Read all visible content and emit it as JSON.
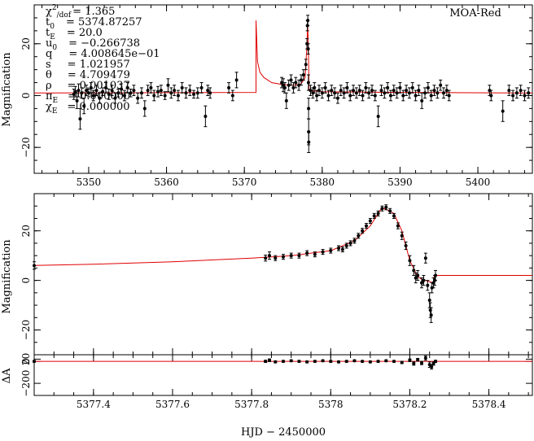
{
  "chart_data": [
    {
      "type": "scatter",
      "title": "",
      "label_text": "MOA-Red",
      "xlim": [
        5343,
        5407
      ],
      "ylim": [
        -30,
        35
      ],
      "ylabel": "Magnification",
      "xticks": [
        5350,
        5360,
        5370,
        5380,
        5390,
        5400
      ],
      "yticks": [
        -20,
        0,
        20
      ],
      "fit_color": "#e00000",
      "params": {
        "chi2_label": "χ",
        "chi2_sup": "2",
        "chi2_sub": "/dof",
        "chi2_value": "= 1.365",
        "t0_label": "t",
        "t0_sub": "0",
        "t0_value": "= 5374.87257",
        "tE_label": "t",
        "tE_sub": "E",
        "tE_value": "= 20.0",
        "u0_label": "u",
        "u0_sub": "0",
        "u0_value": "= −0.266738",
        "q_label": "q",
        "q_value": "= 4.008645e−01",
        "s_label": "s",
        "s_value": "= 1.021957",
        "theta_label": "θ",
        "theta_value": "= 4.709479",
        "rho_label": "ρ",
        "rho_value": "= 0.001037",
        "piE_label": "π",
        "piE_sub": "E",
        "piE_value": "= 0.000000",
        "chiE_label": "χ",
        "chiE_sub": "E",
        "chiE_value": "= 0.000000"
      },
      "fit_curve": [
        [
          5343,
          1
        ],
        [
          5371.5,
          1.2
        ],
        [
          5371.5,
          29
        ],
        [
          5371.7,
          13
        ],
        [
          5372,
          9
        ],
        [
          5372.5,
          7
        ],
        [
          5373.5,
          5
        ],
        [
          5375,
          4.2
        ],
        [
          5376.5,
          4
        ],
        [
          5377.3,
          4.5
        ],
        [
          5377.8,
          7
        ],
        [
          5378.05,
          20
        ],
        [
          5378.12,
          28
        ],
        [
          5378.22,
          20
        ],
        [
          5378.3,
          2
        ],
        [
          5380,
          1.5
        ],
        [
          5390,
          1.2
        ],
        [
          5407,
          1
        ]
      ],
      "points": [
        [
          5348.1,
          0.5,
          2
        ],
        [
          5348.3,
          1.5,
          2
        ],
        [
          5348.5,
          -2,
          3
        ],
        [
          5348.7,
          2,
          2.5
        ],
        [
          5348.9,
          -9,
          4
        ],
        [
          5349.1,
          1,
          2
        ],
        [
          5349.4,
          -4,
          3
        ],
        [
          5349.7,
          2,
          2
        ],
        [
          5350.0,
          1,
          1.5
        ],
        [
          5350.3,
          3,
          2
        ],
        [
          5350.6,
          0,
          2
        ],
        [
          5351.0,
          2,
          2
        ],
        [
          5351.4,
          -1,
          2
        ],
        [
          5351.8,
          1.5,
          1.5
        ],
        [
          5352.2,
          3,
          2
        ],
        [
          5352.6,
          0.5,
          2
        ],
        [
          5353.0,
          2,
          2
        ],
        [
          5353.4,
          -1,
          2
        ],
        [
          5353.8,
          1,
          1.5
        ],
        [
          5354.2,
          2.5,
          2
        ],
        [
          5354.6,
          0,
          2
        ],
        [
          5355.0,
          3,
          2
        ],
        [
          5355.4,
          1,
          1.5
        ],
        [
          5355.8,
          2,
          2
        ],
        [
          5356.3,
          -1,
          2
        ],
        [
          5356.8,
          1,
          2
        ],
        [
          5357.2,
          -5,
          3
        ],
        [
          5357.6,
          2,
          2
        ],
        [
          5358.0,
          3,
          2
        ],
        [
          5358.4,
          0,
          2
        ],
        [
          5358.9,
          1.5,
          2
        ],
        [
          5359.3,
          2,
          2
        ],
        [
          5359.8,
          0,
          1.5
        ],
        [
          5360.2,
          4,
          2.5
        ],
        [
          5360.6,
          1,
          2
        ],
        [
          5361.0,
          2,
          2
        ],
        [
          5361.5,
          0,
          2
        ],
        [
          5362.0,
          3,
          2
        ],
        [
          5362.5,
          1,
          2
        ],
        [
          5363.0,
          2,
          2
        ],
        [
          5363.5,
          0.5,
          1.5
        ],
        [
          5364.0,
          1,
          2
        ],
        [
          5364.5,
          3,
          2
        ],
        [
          5365.0,
          -8,
          4
        ],
        [
          5365.3,
          2,
          2
        ],
        [
          5365.6,
          1,
          2
        ],
        [
          5368.0,
          3,
          2
        ],
        [
          5368.5,
          0,
          2
        ],
        [
          5369.0,
          6,
          3
        ],
        [
          5374.8,
          5,
          2
        ],
        [
          5375.0,
          4,
          2.5
        ],
        [
          5375.2,
          3,
          2
        ],
        [
          5375.4,
          -2,
          3
        ],
        [
          5375.7,
          4,
          2
        ],
        [
          5376.0,
          6,
          2
        ],
        [
          5376.3,
          3,
          2
        ],
        [
          5376.6,
          5,
          2
        ],
        [
          5377.0,
          4,
          2
        ],
        [
          5377.3,
          6,
          2
        ],
        [
          5377.6,
          8,
          2
        ],
        [
          5377.9,
          12,
          2
        ],
        [
          5378.05,
          20,
          2
        ],
        [
          5378.1,
          27,
          2
        ],
        [
          5378.15,
          29,
          2
        ],
        [
          5378.2,
          18,
          2
        ],
        [
          5378.23,
          5,
          3
        ],
        [
          5378.25,
          -5,
          4
        ],
        [
          5378.26,
          -14,
          5
        ],
        [
          5378.27,
          -18,
          4
        ],
        [
          5378.5,
          2,
          2
        ],
        [
          5378.8,
          1,
          2
        ],
        [
          5379.0,
          3,
          2
        ],
        [
          5379.3,
          0,
          2
        ],
        [
          5379.6,
          2,
          2
        ],
        [
          5380.0,
          1,
          2
        ],
        [
          5380.4,
          3,
          2
        ],
        [
          5380.8,
          0,
          2
        ],
        [
          5381.2,
          2,
          2
        ],
        [
          5381.6,
          1,
          2
        ],
        [
          5382.0,
          -1,
          2
        ],
        [
          5382.4,
          2,
          2
        ],
        [
          5382.8,
          1,
          2
        ],
        [
          5383.2,
          3,
          2
        ],
        [
          5383.6,
          0,
          2
        ],
        [
          5384.0,
          2,
          2
        ],
        [
          5384.4,
          1,
          2
        ],
        [
          5384.8,
          2,
          2
        ],
        [
          5385.2,
          0,
          2
        ],
        [
          5385.6,
          3,
          2
        ],
        [
          5386.0,
          1,
          2
        ],
        [
          5386.4,
          2,
          2
        ],
        [
          5386.8,
          0,
          2
        ],
        [
          5387.2,
          -8,
          4
        ],
        [
          5387.6,
          2,
          2
        ],
        [
          5388.0,
          1,
          2
        ],
        [
          5388.4,
          3,
          2
        ],
        [
          5388.8,
          0,
          2
        ],
        [
          5389.2,
          2,
          2
        ],
        [
          5389.6,
          1,
          2
        ],
        [
          5390.0,
          3,
          2
        ],
        [
          5390.4,
          0,
          2
        ],
        [
          5390.8,
          2,
          2
        ],
        [
          5391.2,
          1,
          2
        ],
        [
          5391.6,
          3,
          2
        ],
        [
          5392.0,
          0,
          2
        ],
        [
          5392.4,
          2,
          2
        ],
        [
          5392.8,
          -2,
          3
        ],
        [
          5393.2,
          1,
          2
        ],
        [
          5393.6,
          3,
          2
        ],
        [
          5394.0,
          0,
          2
        ],
        [
          5394.4,
          2,
          2
        ],
        [
          5394.8,
          1,
          2
        ],
        [
          5395.2,
          4,
          2
        ],
        [
          5395.6,
          1,
          2
        ],
        [
          5396.0,
          2,
          2
        ],
        [
          5396.3,
          0,
          2
        ],
        [
          5401.5,
          2,
          2
        ],
        [
          5401.7,
          0,
          2
        ],
        [
          5403.2,
          -6,
          4
        ],
        [
          5404.0,
          2,
          2
        ],
        [
          5404.5,
          0,
          2
        ],
        [
          5405.0,
          1,
          2
        ],
        [
          5405.5,
          2,
          2
        ],
        [
          5406.0,
          0,
          2
        ],
        [
          5406.5,
          1,
          2
        ]
      ]
    },
    {
      "type": "scatter",
      "title": "",
      "xlim": [
        5377.25,
        5378.51
      ],
      "ylim": [
        -30,
        35
      ],
      "ylabel": "Magnification",
      "yticks": [
        -20,
        0,
        20
      ],
      "fit_color": "#e00000",
      "fit_curve": [
        [
          5377.25,
          6
        ],
        [
          5377.4,
          6.5
        ],
        [
          5377.6,
          7.5
        ],
        [
          5377.8,
          9
        ],
        [
          5377.9,
          10
        ],
        [
          5378.0,
          12
        ],
        [
          5378.06,
          16
        ],
        [
          5378.1,
          22
        ],
        [
          5378.13,
          29.5
        ],
        [
          5378.16,
          27
        ],
        [
          5378.18,
          20
        ],
        [
          5378.2,
          8
        ],
        [
          5378.22,
          1.5
        ],
        [
          5378.23,
          0.5
        ],
        [
          5378.26,
          -1
        ],
        [
          5378.262,
          2
        ],
        [
          5378.51,
          2
        ]
      ],
      "points": [
        [
          5377.25,
          6,
          1.5
        ],
        [
          5377.835,
          9,
          1.2
        ],
        [
          5377.845,
          10,
          1.5
        ],
        [
          5377.86,
          9,
          1
        ],
        [
          5377.88,
          9.5,
          1
        ],
        [
          5377.9,
          10,
          1
        ],
        [
          5377.92,
          10,
          1
        ],
        [
          5377.94,
          11,
          1
        ],
        [
          5377.96,
          10.5,
          1
        ],
        [
          5377.98,
          11.5,
          1
        ],
        [
          5378.0,
          12,
          1
        ],
        [
          5378.02,
          13,
          1
        ],
        [
          5378.03,
          12.5,
          1
        ],
        [
          5378.04,
          14,
          1
        ],
        [
          5378.05,
          15,
          1
        ],
        [
          5378.06,
          16,
          1
        ],
        [
          5378.07,
          18,
          1
        ],
        [
          5378.08,
          20,
          1
        ],
        [
          5378.09,
          22,
          1
        ],
        [
          5378.1,
          24,
          1
        ],
        [
          5378.11,
          26,
          1
        ],
        [
          5378.12,
          27,
          1
        ],
        [
          5378.13,
          29,
          1
        ],
        [
          5378.14,
          29.5,
          1
        ],
        [
          5378.15,
          28,
          1
        ],
        [
          5378.16,
          26,
          1
        ],
        [
          5378.17,
          22,
          1.2
        ],
        [
          5378.18,
          18,
          1.5
        ],
        [
          5378.19,
          14,
          1.5
        ],
        [
          5378.2,
          8,
          2
        ],
        [
          5378.21,
          4,
          2
        ],
        [
          5378.215,
          1,
          2
        ],
        [
          5378.22,
          2,
          2
        ],
        [
          5378.23,
          -1,
          2
        ],
        [
          5378.235,
          0,
          2
        ],
        [
          5378.24,
          9,
          2
        ],
        [
          5378.245,
          -2,
          2
        ],
        [
          5378.25,
          -8,
          3
        ],
        [
          5378.252,
          -12,
          3
        ],
        [
          5378.254,
          -14,
          3
        ],
        [
          5378.256,
          -3,
          2
        ],
        [
          5378.26,
          -1,
          2
        ],
        [
          5378.263,
          0,
          2
        ],
        [
          5378.265,
          2,
          2
        ]
      ]
    },
    {
      "type": "scatter",
      "title": "",
      "xlim": [
        5377.25,
        5378.51
      ],
      "ylim": [
        -310,
        60
      ],
      "ylabel": "ΔA",
      "xlabel": "HJD − 2450000",
      "xticks": [
        5377.4,
        5377.6,
        5377.8,
        5378,
        5378.2,
        5378.4
      ],
      "xtick_labels": [
        "5377.4",
        "5377.6",
        "5377.8",
        "5378",
        "5378.2",
        "5378.4"
      ],
      "yticks": [
        -200,
        0,
        20
      ],
      "ytick_labels": [
        "−200",
        "0",
        "20"
      ],
      "residual_line": 0,
      "points": [
        [
          5377.25,
          0,
          8
        ],
        [
          5377.835,
          0,
          10
        ],
        [
          5377.845,
          10,
          12
        ],
        [
          5377.86,
          -5,
          8
        ],
        [
          5377.88,
          0,
          8
        ],
        [
          5377.9,
          5,
          8
        ],
        [
          5377.92,
          0,
          8
        ],
        [
          5377.94,
          -5,
          8
        ],
        [
          5377.96,
          0,
          8
        ],
        [
          5377.98,
          5,
          8
        ],
        [
          5378.0,
          0,
          8
        ],
        [
          5378.02,
          -5,
          8
        ],
        [
          5378.04,
          0,
          8
        ],
        [
          5378.06,
          5,
          8
        ],
        [
          5378.08,
          0,
          8
        ],
        [
          5378.1,
          -5,
          8
        ],
        [
          5378.12,
          0,
          8
        ],
        [
          5378.14,
          5,
          8
        ],
        [
          5378.16,
          0,
          8
        ],
        [
          5378.18,
          -10,
          10
        ],
        [
          5378.2,
          10,
          12
        ],
        [
          5378.21,
          -20,
          15
        ],
        [
          5378.22,
          15,
          12
        ],
        [
          5378.23,
          -15,
          15
        ],
        [
          5378.24,
          30,
          20
        ],
        [
          5378.25,
          -30,
          25
        ],
        [
          5378.255,
          -50,
          20
        ],
        [
          5378.26,
          -20,
          15
        ],
        [
          5378.265,
          0,
          10
        ]
      ]
    }
  ]
}
